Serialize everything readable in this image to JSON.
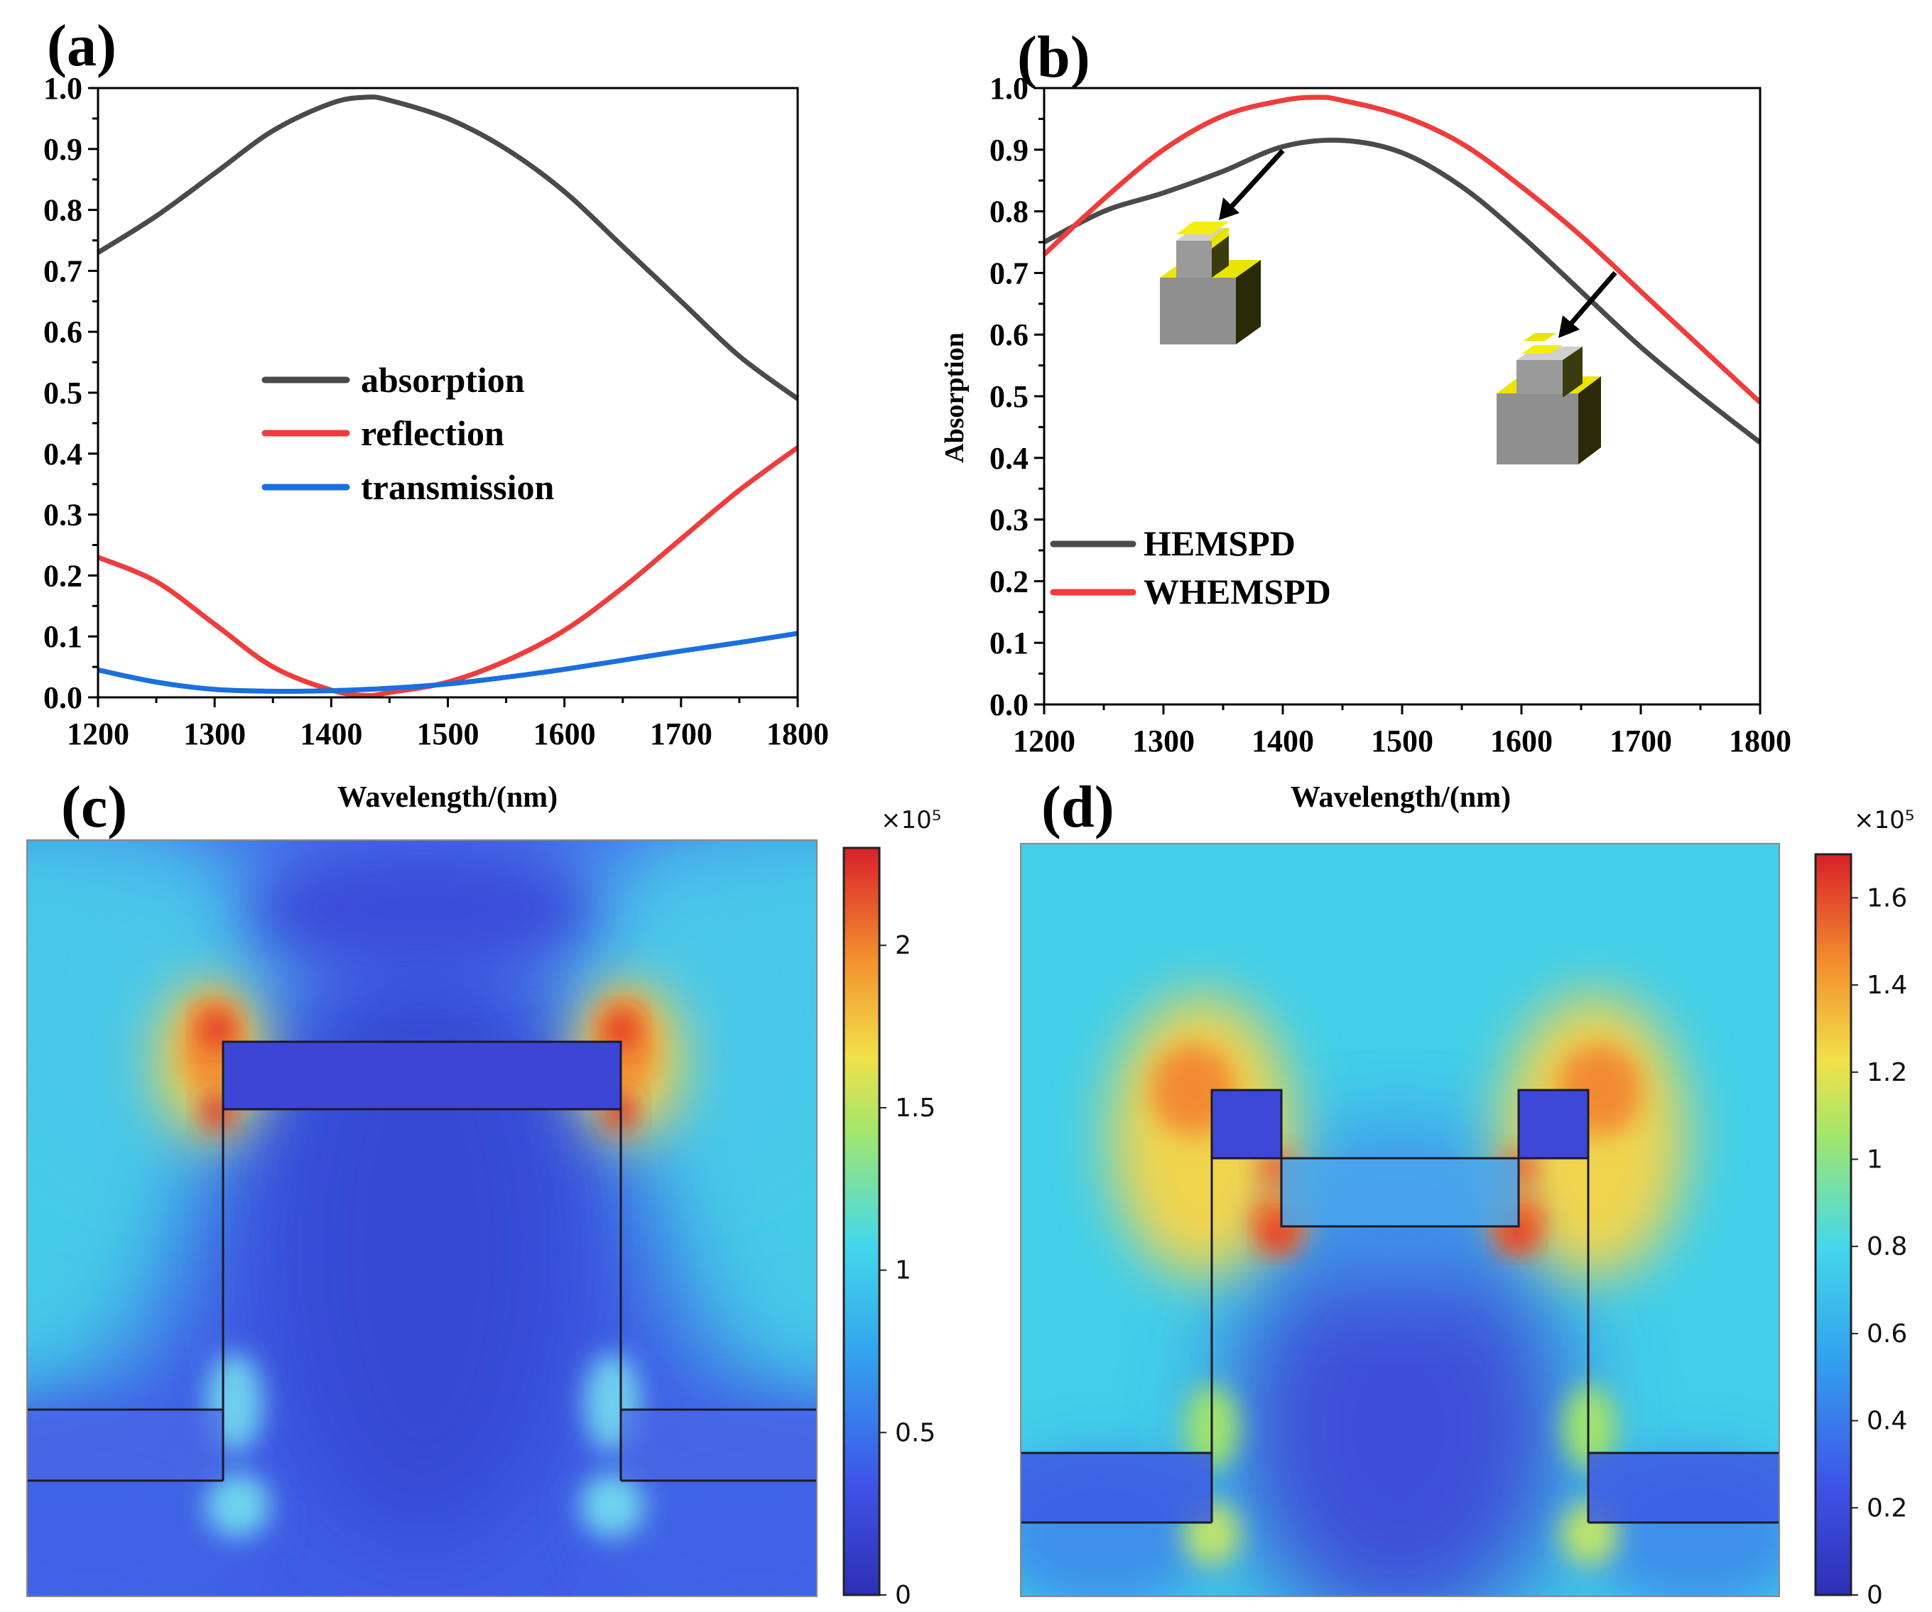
{
  "chart_data": [
    {
      "id": "a",
      "type": "line",
      "panel_label": "(a)",
      "xlabel": "Wavelength/(nm)",
      "ylabel": "",
      "xlim": [
        1200,
        1800
      ],
      "ylim": [
        0.0,
        1.0
      ],
      "xticks": [
        1200,
        1300,
        1400,
        1500,
        1600,
        1700,
        1800
      ],
      "yticks": [
        "0.0",
        "0.1",
        "0.2",
        "0.3",
        "0.4",
        "0.5",
        "0.6",
        "0.7",
        "0.8",
        "0.9",
        "1.0"
      ],
      "legend_position": "center",
      "series": [
        {
          "name": "absorption",
          "color": "#4a4a4a",
          "x": [
            1200,
            1250,
            1300,
            1350,
            1400,
            1430,
            1450,
            1500,
            1550,
            1600,
            1650,
            1700,
            1750,
            1800
          ],
          "y": [
            0.73,
            0.79,
            0.86,
            0.93,
            0.975,
            0.985,
            0.98,
            0.95,
            0.9,
            0.83,
            0.74,
            0.65,
            0.56,
            0.49
          ]
        },
        {
          "name": "reflection",
          "color": "#f03c3c",
          "x": [
            1200,
            1250,
            1300,
            1350,
            1400,
            1430,
            1450,
            1500,
            1550,
            1600,
            1650,
            1700,
            1750,
            1800
          ],
          "y": [
            0.23,
            0.19,
            0.12,
            0.05,
            0.012,
            0.003,
            0.008,
            0.025,
            0.06,
            0.11,
            0.18,
            0.26,
            0.34,
            0.41
          ]
        },
        {
          "name": "transmission",
          "color": "#1a6fe0",
          "x": [
            1200,
            1250,
            1300,
            1350,
            1400,
            1450,
            1500,
            1550,
            1600,
            1650,
            1700,
            1750,
            1800
          ],
          "y": [
            0.045,
            0.025,
            0.013,
            0.01,
            0.011,
            0.015,
            0.022,
            0.033,
            0.046,
            0.061,
            0.076,
            0.09,
            0.105
          ]
        }
      ]
    },
    {
      "id": "b",
      "type": "line",
      "panel_label": "(b)",
      "xlabel": "Wavelength/(nm)",
      "ylabel": "Absorption",
      "xlim": [
        1200,
        1800
      ],
      "ylim": [
        0.0,
        1.0
      ],
      "xticks": [
        1200,
        1300,
        1400,
        1500,
        1600,
        1700,
        1800
      ],
      "yticks": [
        "0.0",
        "0.1",
        "0.2",
        "0.3",
        "0.4",
        "0.5",
        "0.6",
        "0.7",
        "0.8",
        "0.9",
        "1.0"
      ],
      "legend_position": "bottom-left",
      "series": [
        {
          "name": "HEMSPD",
          "color": "#4a4a4a",
          "x": [
            1200,
            1250,
            1300,
            1350,
            1400,
            1450,
            1500,
            1550,
            1600,
            1650,
            1700,
            1750,
            1800
          ],
          "y": [
            0.75,
            0.8,
            0.83,
            0.865,
            0.905,
            0.915,
            0.895,
            0.84,
            0.76,
            0.67,
            0.58,
            0.5,
            0.425
          ]
        },
        {
          "name": "WHEMSPD",
          "color": "#f03c3c",
          "x": [
            1200,
            1250,
            1300,
            1350,
            1400,
            1430,
            1450,
            1500,
            1550,
            1600,
            1650,
            1700,
            1750,
            1800
          ],
          "y": [
            0.73,
            0.82,
            0.9,
            0.955,
            0.98,
            0.985,
            0.98,
            0.955,
            0.91,
            0.84,
            0.76,
            0.67,
            0.58,
            0.49
          ]
        }
      ]
    },
    {
      "id": "c",
      "type": "heatmap",
      "panel_label": "(c)",
      "colorbar_exponent": "×10⁵",
      "colorbar_ticks": [
        "0",
        "0.5",
        "1",
        "1.5",
        "2"
      ],
      "colorbar_range": [
        0,
        2.3
      ]
    },
    {
      "id": "d",
      "type": "heatmap",
      "panel_label": "(d)",
      "colorbar_exponent": "×10⁵",
      "colorbar_ticks": [
        "0",
        "0.2",
        "0.4",
        "0.6",
        "0.8",
        "1",
        "1.2",
        "1.4",
        "1.6"
      ],
      "colorbar_range": [
        0,
        1.7
      ]
    }
  ]
}
